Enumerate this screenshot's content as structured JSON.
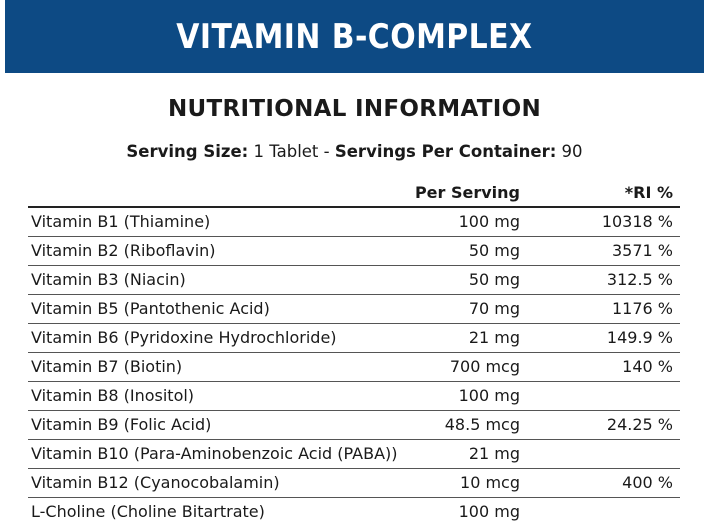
{
  "header": {
    "title": "VITAMIN B-COMPLEX",
    "background_color": "#0d4a84"
  },
  "section_title": "NUTRITIONAL INFORMATION",
  "serving": {
    "size_label": "Serving Size:",
    "size_value": " 1 Tablet - ",
    "container_label": "Servings Per Container:",
    "container_value": " 90"
  },
  "table": {
    "headers": {
      "per_serving": "Per Serving",
      "ri": "*RI %"
    },
    "rows": [
      {
        "name": "Vitamin B1 (Thiamine)",
        "amount": "100 mg",
        "ri": "10318 %"
      },
      {
        "name": "Vitamin B2 (Riboflavin)",
        "amount": "50 mg",
        "ri": "3571 %"
      },
      {
        "name": "Vitamin B3 (Niacin)",
        "amount": "50 mg",
        "ri": "312.5 %"
      },
      {
        "name": "Vitamin B5 (Pantothenic Acid)",
        "amount": "70 mg",
        "ri": "1176 %"
      },
      {
        "name": "Vitamin B6 (Pyridoxine Hydrochloride)",
        "amount": "21 mg",
        "ri": "149.9 %"
      },
      {
        "name": "Vitamin B7 (Biotin)",
        "amount": "700 mcg",
        "ri": "140 %"
      },
      {
        "name": "Vitamin B8 (Inositol)",
        "amount": "100 mg",
        "ri": ""
      },
      {
        "name": "Vitamin B9 (Folic Acid)",
        "amount": "48.5 mcg",
        "ri": "24.25 %"
      },
      {
        "name": "Vitamin B10 (Para-Aminobenzoic Acid (PABA))",
        "amount": "21 mg",
        "ri": ""
      },
      {
        "name": "Vitamin B12 (Cyanocobalamin)",
        "amount": "10 mcg",
        "ri": "400 %"
      },
      {
        "name": "L-Choline (Choline Bitartrate)",
        "amount": "100 mg",
        "ri": ""
      }
    ]
  }
}
